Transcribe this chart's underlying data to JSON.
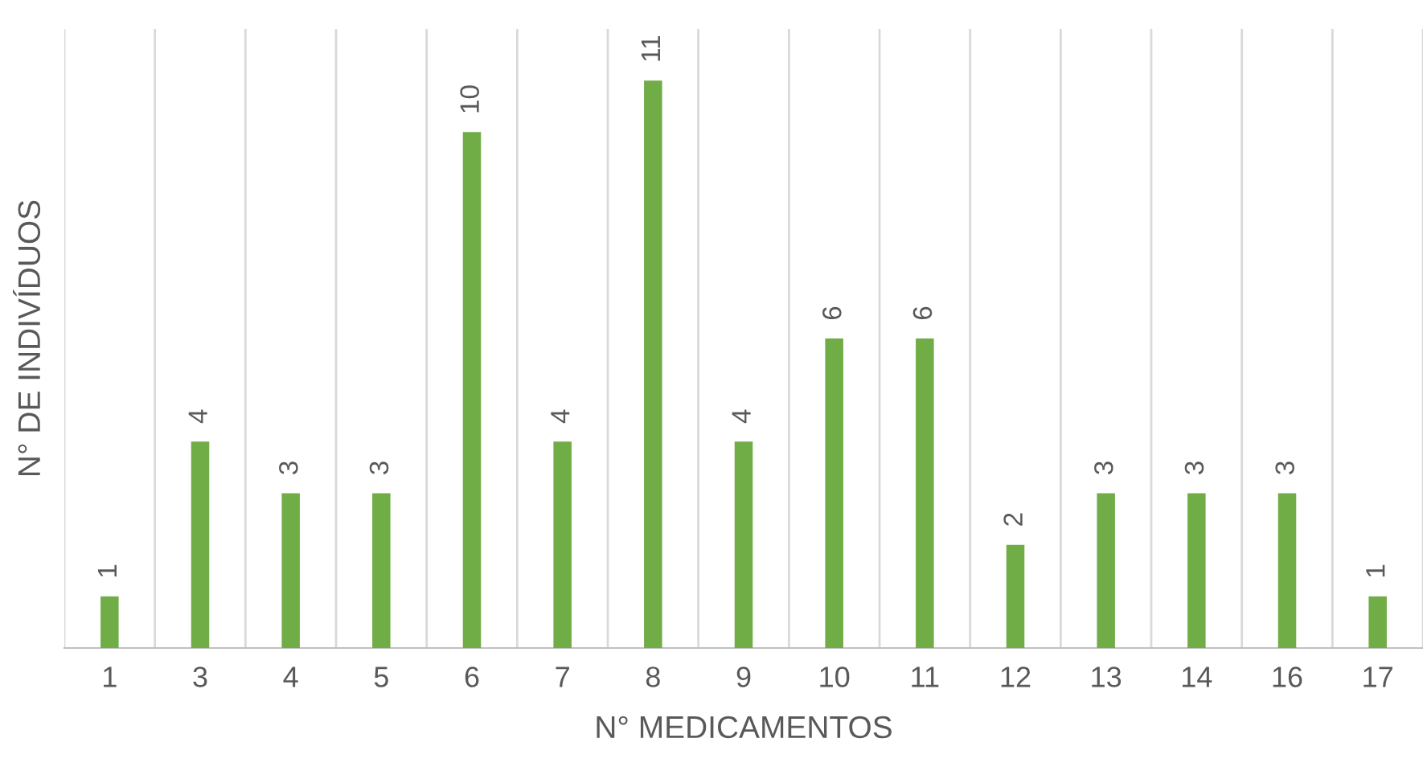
{
  "chart_data": {
    "type": "bar",
    "xlabel": "N° MEDICAMENTOS",
    "ylabel": "N° DE INDIVÍDUOS",
    "categories": [
      "1",
      "3",
      "4",
      "5",
      "6",
      "7",
      "8",
      "9",
      "10",
      "11",
      "12",
      "13",
      "14",
      "16",
      "17"
    ],
    "values": [
      1,
      4,
      3,
      3,
      10,
      4,
      11,
      4,
      6,
      6,
      2,
      3,
      3,
      3,
      1
    ],
    "color": "#70ad47",
    "data_labels": true,
    "grid": "x",
    "legend": false
  }
}
